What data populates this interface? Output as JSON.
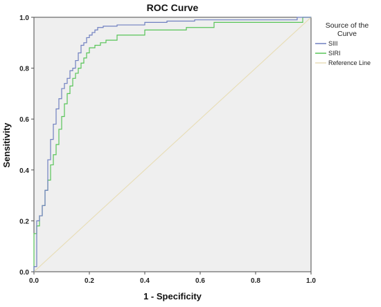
{
  "chart_data": {
    "type": "line",
    "title": "ROC Curve",
    "xlabel": "1 - Specificity",
    "ylabel": "Sensitivity",
    "xlim": [
      0,
      1
    ],
    "ylim": [
      0,
      1
    ],
    "x_ticks": [
      "0.0",
      "0.2",
      "0.4",
      "0.6",
      "0.8",
      "1.0"
    ],
    "y_ticks": [
      "0.0",
      "0.2",
      "0.4",
      "0.6",
      "0.8",
      "1.0"
    ],
    "grid": false,
    "legend": {
      "title": "Source of the Curve",
      "placement": "right",
      "entries": [
        "SIII",
        "SIRI",
        "Reference Line"
      ]
    },
    "series": [
      {
        "name": "SIII",
        "color": "#6f7fc0",
        "x": [
          0.0,
          0.0,
          0.01,
          0.01,
          0.02,
          0.02,
          0.03,
          0.03,
          0.04,
          0.04,
          0.05,
          0.05,
          0.06,
          0.06,
          0.07,
          0.07,
          0.08,
          0.08,
          0.09,
          0.09,
          0.1,
          0.1,
          0.11,
          0.11,
          0.12,
          0.12,
          0.13,
          0.13,
          0.14,
          0.14,
          0.15,
          0.15,
          0.16,
          0.16,
          0.17,
          0.17,
          0.18,
          0.18,
          0.19,
          0.19,
          0.2,
          0.2,
          0.21,
          0.21,
          0.22,
          0.22,
          0.23,
          0.23,
          0.25,
          0.25,
          0.3,
          0.3,
          0.4,
          0.4,
          0.48,
          0.48,
          0.58,
          0.58,
          0.95,
          0.95,
          1.0
        ],
        "y": [
          0.0,
          0.02,
          0.02,
          0.2,
          0.2,
          0.22,
          0.22,
          0.26,
          0.26,
          0.32,
          0.32,
          0.44,
          0.44,
          0.52,
          0.52,
          0.58,
          0.58,
          0.64,
          0.64,
          0.68,
          0.68,
          0.72,
          0.72,
          0.74,
          0.74,
          0.76,
          0.76,
          0.79,
          0.79,
          0.8,
          0.8,
          0.83,
          0.83,
          0.86,
          0.86,
          0.89,
          0.89,
          0.9,
          0.9,
          0.92,
          0.92,
          0.93,
          0.93,
          0.94,
          0.94,
          0.95,
          0.95,
          0.96,
          0.96,
          0.965,
          0.965,
          0.97,
          0.97,
          0.98,
          0.98,
          0.985,
          0.985,
          0.99,
          0.99,
          1.0,
          1.0
        ]
      },
      {
        "name": "SIRI",
        "color": "#57c457",
        "x": [
          0.0,
          0.0,
          0.01,
          0.01,
          0.02,
          0.02,
          0.03,
          0.03,
          0.04,
          0.04,
          0.05,
          0.05,
          0.06,
          0.06,
          0.07,
          0.07,
          0.08,
          0.08,
          0.09,
          0.09,
          0.1,
          0.1,
          0.11,
          0.11,
          0.12,
          0.12,
          0.13,
          0.13,
          0.14,
          0.14,
          0.15,
          0.15,
          0.16,
          0.16,
          0.17,
          0.17,
          0.18,
          0.18,
          0.19,
          0.19,
          0.2,
          0.2,
          0.22,
          0.22,
          0.24,
          0.24,
          0.26,
          0.26,
          0.3,
          0.3,
          0.4,
          0.4,
          0.55,
          0.55,
          0.65,
          0.65,
          0.97,
          0.97,
          1.0
        ],
        "y": [
          0.0,
          0.15,
          0.15,
          0.18,
          0.18,
          0.22,
          0.22,
          0.26,
          0.26,
          0.32,
          0.32,
          0.36,
          0.36,
          0.42,
          0.42,
          0.46,
          0.46,
          0.5,
          0.5,
          0.56,
          0.56,
          0.61,
          0.61,
          0.66,
          0.66,
          0.7,
          0.7,
          0.73,
          0.73,
          0.76,
          0.76,
          0.78,
          0.78,
          0.8,
          0.8,
          0.82,
          0.82,
          0.84,
          0.84,
          0.86,
          0.86,
          0.88,
          0.88,
          0.89,
          0.89,
          0.9,
          0.9,
          0.91,
          0.91,
          0.93,
          0.93,
          0.95,
          0.95,
          0.96,
          0.96,
          0.98,
          0.98,
          1.0,
          1.0
        ]
      },
      {
        "name": "Reference Line",
        "color": "#e8deb8",
        "x": [
          0.0,
          1.0
        ],
        "y": [
          0.0,
          1.0
        ]
      }
    ]
  }
}
